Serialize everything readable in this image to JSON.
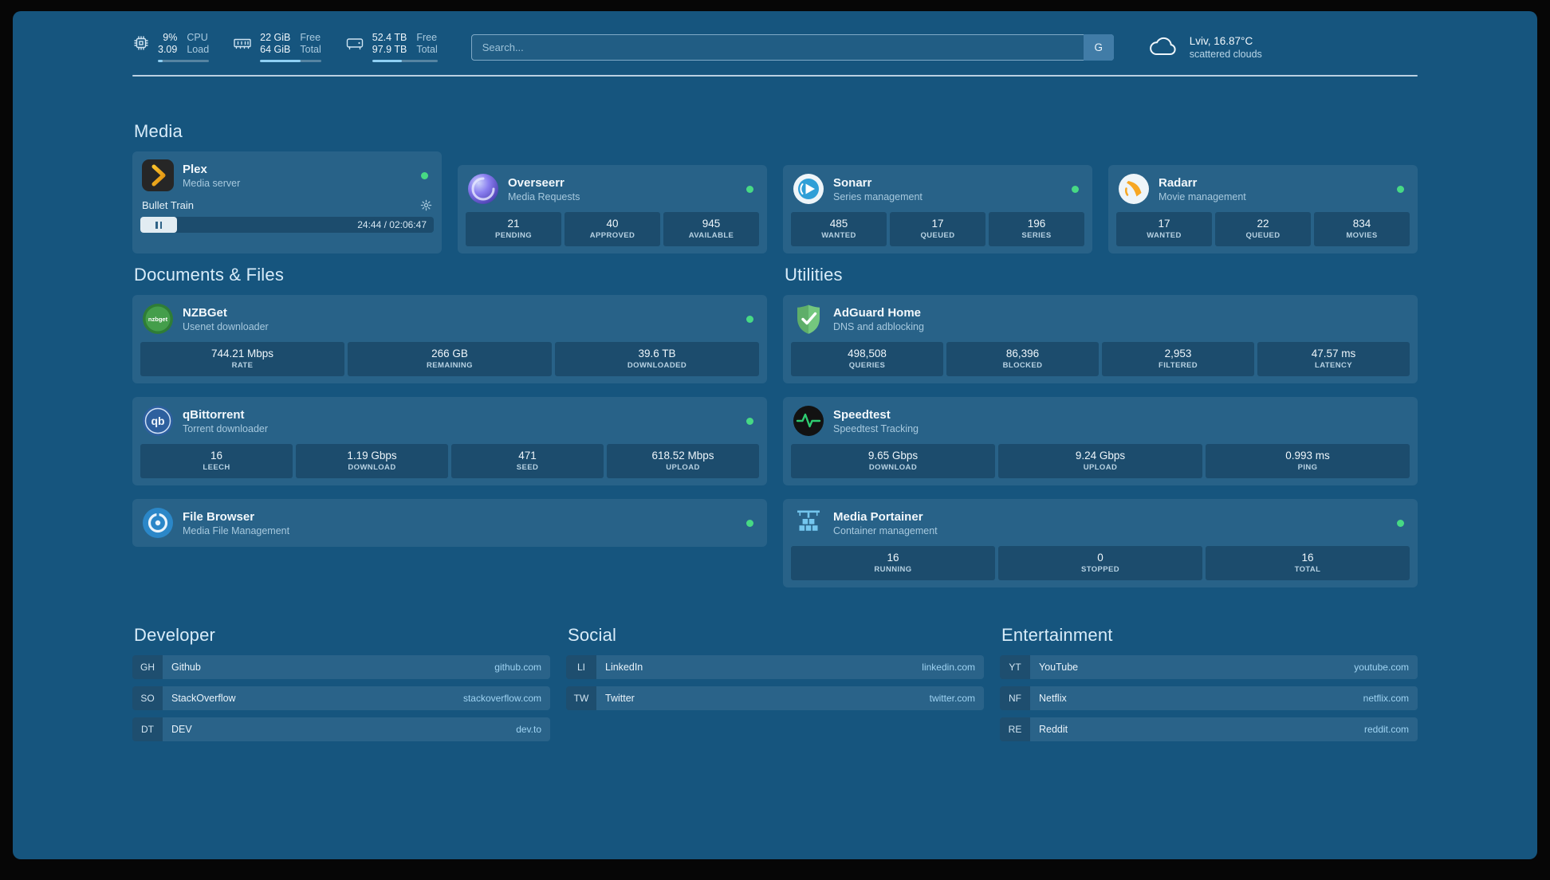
{
  "topbar": {
    "resources": [
      {
        "icon": "cpu-icon",
        "value1": "9%",
        "value2": "3.09",
        "label1": "CPU",
        "label2": "Load",
        "meter_pct": 9
      },
      {
        "icon": "memory-icon",
        "value1": "22 GiB",
        "value2": "64 GiB",
        "label1": "Free",
        "label2": "Total",
        "meter_pct": 66
      },
      {
        "icon": "disk-icon",
        "value1": "52.4 TB",
        "value2": "97.9 TB",
        "label1": "Free",
        "label2": "Total",
        "meter_pct": 46
      }
    ],
    "search": {
      "placeholder": "Search...",
      "button_label": "G"
    },
    "weather": {
      "location": "Lviv, 16.87°C",
      "condition": "scattered clouds"
    }
  },
  "sections": {
    "media": {
      "title": "Media",
      "plex": {
        "name": "Plex",
        "description": "Media server",
        "now_playing": "Bullet Train",
        "time": "24:44 / 02:06:47"
      },
      "overseerr": {
        "name": "Overseerr",
        "description": "Media Requests",
        "stats": [
          {
            "value": "21",
            "label": "PENDING"
          },
          {
            "value": "40",
            "label": "APPROVED"
          },
          {
            "value": "945",
            "label": "AVAILABLE"
          }
        ]
      },
      "sonarr": {
        "name": "Sonarr",
        "description": "Series management",
        "stats": [
          {
            "value": "485",
            "label": "WANTED"
          },
          {
            "value": "17",
            "label": "QUEUED"
          },
          {
            "value": "196",
            "label": "SERIES"
          }
        ]
      },
      "radarr": {
        "name": "Radarr",
        "description": "Movie management",
        "stats": [
          {
            "value": "17",
            "label": "WANTED"
          },
          {
            "value": "22",
            "label": "QUEUED"
          },
          {
            "value": "834",
            "label": "MOVIES"
          }
        ]
      }
    },
    "documents": {
      "title": "Documents & Files",
      "nzbget": {
        "name": "NZBGet",
        "description": "Usenet downloader",
        "stats": [
          {
            "value": "744.21 Mbps",
            "label": "RATE"
          },
          {
            "value": "266 GB",
            "label": "REMAINING"
          },
          {
            "value": "39.6 TB",
            "label": "DOWNLOADED"
          }
        ]
      },
      "qbittorrent": {
        "name": "qBittorrent",
        "description": "Torrent downloader",
        "stats": [
          {
            "value": "16",
            "label": "LEECH"
          },
          {
            "value": "1.19 Gbps",
            "label": "DOWNLOAD"
          },
          {
            "value": "471",
            "label": "SEED"
          },
          {
            "value": "618.52 Mbps",
            "label": "UPLOAD"
          }
        ]
      },
      "filebrowser": {
        "name": "File Browser",
        "description": "Media File Management"
      }
    },
    "utilities": {
      "title": "Utilities",
      "adguard": {
        "name": "AdGuard Home",
        "description": "DNS and adblocking",
        "stats": [
          {
            "value": "498,508",
            "label": "QUERIES"
          },
          {
            "value": "86,396",
            "label": "BLOCKED"
          },
          {
            "value": "2,953",
            "label": "FILTERED"
          },
          {
            "value": "47.57 ms",
            "label": "LATENCY"
          }
        ]
      },
      "speedtest": {
        "name": "Speedtest",
        "description": "Speedtest Tracking",
        "stats": [
          {
            "value": "9.65 Gbps",
            "label": "DOWNLOAD"
          },
          {
            "value": "9.24 Gbps",
            "label": "UPLOAD"
          },
          {
            "value": "0.993 ms",
            "label": "PING"
          }
        ]
      },
      "portainer": {
        "name": "Media Portainer",
        "description": "Container management",
        "stats": [
          {
            "value": "16",
            "label": "RUNNING"
          },
          {
            "value": "0",
            "label": "STOPPED"
          },
          {
            "value": "16",
            "label": "TOTAL"
          }
        ]
      }
    }
  },
  "bookmarks": {
    "developer": {
      "title": "Developer",
      "items": [
        {
          "abbr": "GH",
          "name": "Github",
          "url": "github.com"
        },
        {
          "abbr": "SO",
          "name": "StackOverflow",
          "url": "stackoverflow.com"
        },
        {
          "abbr": "DT",
          "name": "DEV",
          "url": "dev.to"
        }
      ]
    },
    "social": {
      "title": "Social",
      "items": [
        {
          "abbr": "LI",
          "name": "LinkedIn",
          "url": "linkedin.com"
        },
        {
          "abbr": "TW",
          "name": "Twitter",
          "url": "twitter.com"
        }
      ]
    },
    "entertainment": {
      "title": "Entertainment",
      "items": [
        {
          "abbr": "YT",
          "name": "YouTube",
          "url": "youtube.com"
        },
        {
          "abbr": "NF",
          "name": "Netflix",
          "url": "netflix.com"
        },
        {
          "abbr": "RE",
          "name": "Reddit",
          "url": "reddit.com"
        }
      ]
    }
  },
  "colors": {
    "background": "#16557e",
    "status_online": "#47d984",
    "divider": "#d7e8f3"
  }
}
